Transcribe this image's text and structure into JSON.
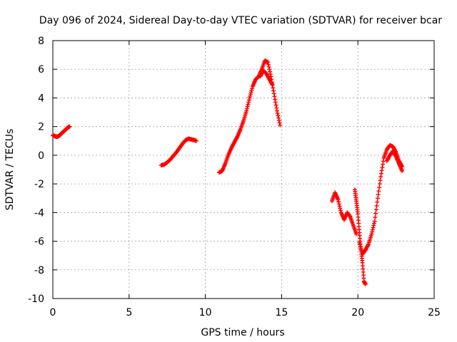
{
  "chart_data": {
    "type": "scatter",
    "title": "Day 096 of 2024, Sidereal Day-to-day VTEC variation (SDTVAR) for receiver bcar",
    "xlabel": "GPS time / hours",
    "ylabel": "SDTVAR / TECUs",
    "xlim": [
      0,
      25
    ],
    "ylim": [
      -10,
      8
    ],
    "xticks": [
      0,
      5,
      10,
      15,
      20,
      25
    ],
    "yticks": [
      -10,
      -8,
      -6,
      -4,
      -2,
      0,
      2,
      4,
      6,
      8
    ],
    "xtick_labels": [
      "0",
      "5",
      "10",
      "15",
      "20",
      "25"
    ],
    "ytick_labels": [
      "-10",
      "-8",
      "-6",
      "-4",
      "-2",
      "0",
      "2",
      "4",
      "6",
      "8"
    ],
    "grid": true,
    "marker": "plus",
    "color": "#ff0000",
    "series": [
      {
        "x": [
          0.0,
          0.1,
          0.2,
          0.3,
          0.4,
          0.5,
          0.6,
          0.7,
          0.8,
          0.9,
          1.0,
          1.1
        ],
        "y": [
          1.4,
          1.35,
          1.3,
          1.3,
          1.35,
          1.45,
          1.55,
          1.65,
          1.75,
          1.85,
          1.95,
          2.0
        ]
      },
      {
        "x": [
          7.1,
          7.3,
          7.5,
          7.7,
          7.9,
          8.1,
          8.3,
          8.5,
          8.7,
          8.9,
          9.1,
          9.3,
          9.4
        ],
        "y": [
          -0.7,
          -0.65,
          -0.5,
          -0.3,
          -0.05,
          0.2,
          0.5,
          0.8,
          1.05,
          1.15,
          1.1,
          1.05,
          1.0
        ]
      },
      {
        "x": [
          10.9,
          11.1,
          11.3,
          11.5,
          11.7,
          11.9,
          12.1,
          12.3,
          12.5,
          12.7,
          12.9,
          13.1,
          13.3,
          13.5,
          13.7,
          13.9,
          14.1,
          14.3,
          14.5,
          14.7,
          14.9
        ],
        "y": [
          -1.2,
          -1.1,
          -0.6,
          0.0,
          0.5,
          0.9,
          1.3,
          1.8,
          2.4,
          3.1,
          4.0,
          4.8,
          5.3,
          5.5,
          6.0,
          6.6,
          6.5,
          5.5,
          4.3,
          3.1,
          2.1
        ]
      },
      {
        "x": [
          13.6,
          13.8,
          14.0,
          14.2,
          14.4
        ],
        "y": [
          5.5,
          5.9,
          5.7,
          5.3,
          4.9
        ]
      },
      {
        "x": [
          18.3,
          18.5,
          18.7,
          18.9,
          19.1,
          19.3,
          19.5,
          19.7,
          19.9
        ],
        "y": [
          -3.2,
          -2.6,
          -3.1,
          -4.0,
          -4.5,
          -4.0,
          -4.3,
          -4.9,
          -5.5
        ]
      },
      {
        "x": [
          19.8,
          19.9,
          20.0,
          20.1,
          20.2,
          20.3,
          20.4,
          20.5
        ],
        "y": [
          -2.4,
          -3.2,
          -4.1,
          -5.4,
          -6.6,
          -7.5,
          -8.8,
          -9.0
        ]
      },
      {
        "x": [
          20.1,
          20.3,
          20.5,
          20.7,
          20.9,
          21.1,
          21.3,
          21.5,
          21.7,
          21.9,
          22.1,
          22.3,
          22.5,
          22.7,
          22.9
        ],
        "y": [
          -6.1,
          -6.9,
          -6.6,
          -6.2,
          -5.5,
          -4.6,
          -3.0,
          -1.5,
          -0.2,
          0.4,
          0.7,
          0.6,
          0.2,
          -0.4,
          -0.8
        ]
      },
      {
        "x": [
          21.9,
          22.1,
          22.3,
          22.5,
          22.7,
          22.9
        ],
        "y": [
          -0.4,
          0.0,
          0.3,
          -0.1,
          -0.6,
          -1.1
        ]
      }
    ]
  }
}
